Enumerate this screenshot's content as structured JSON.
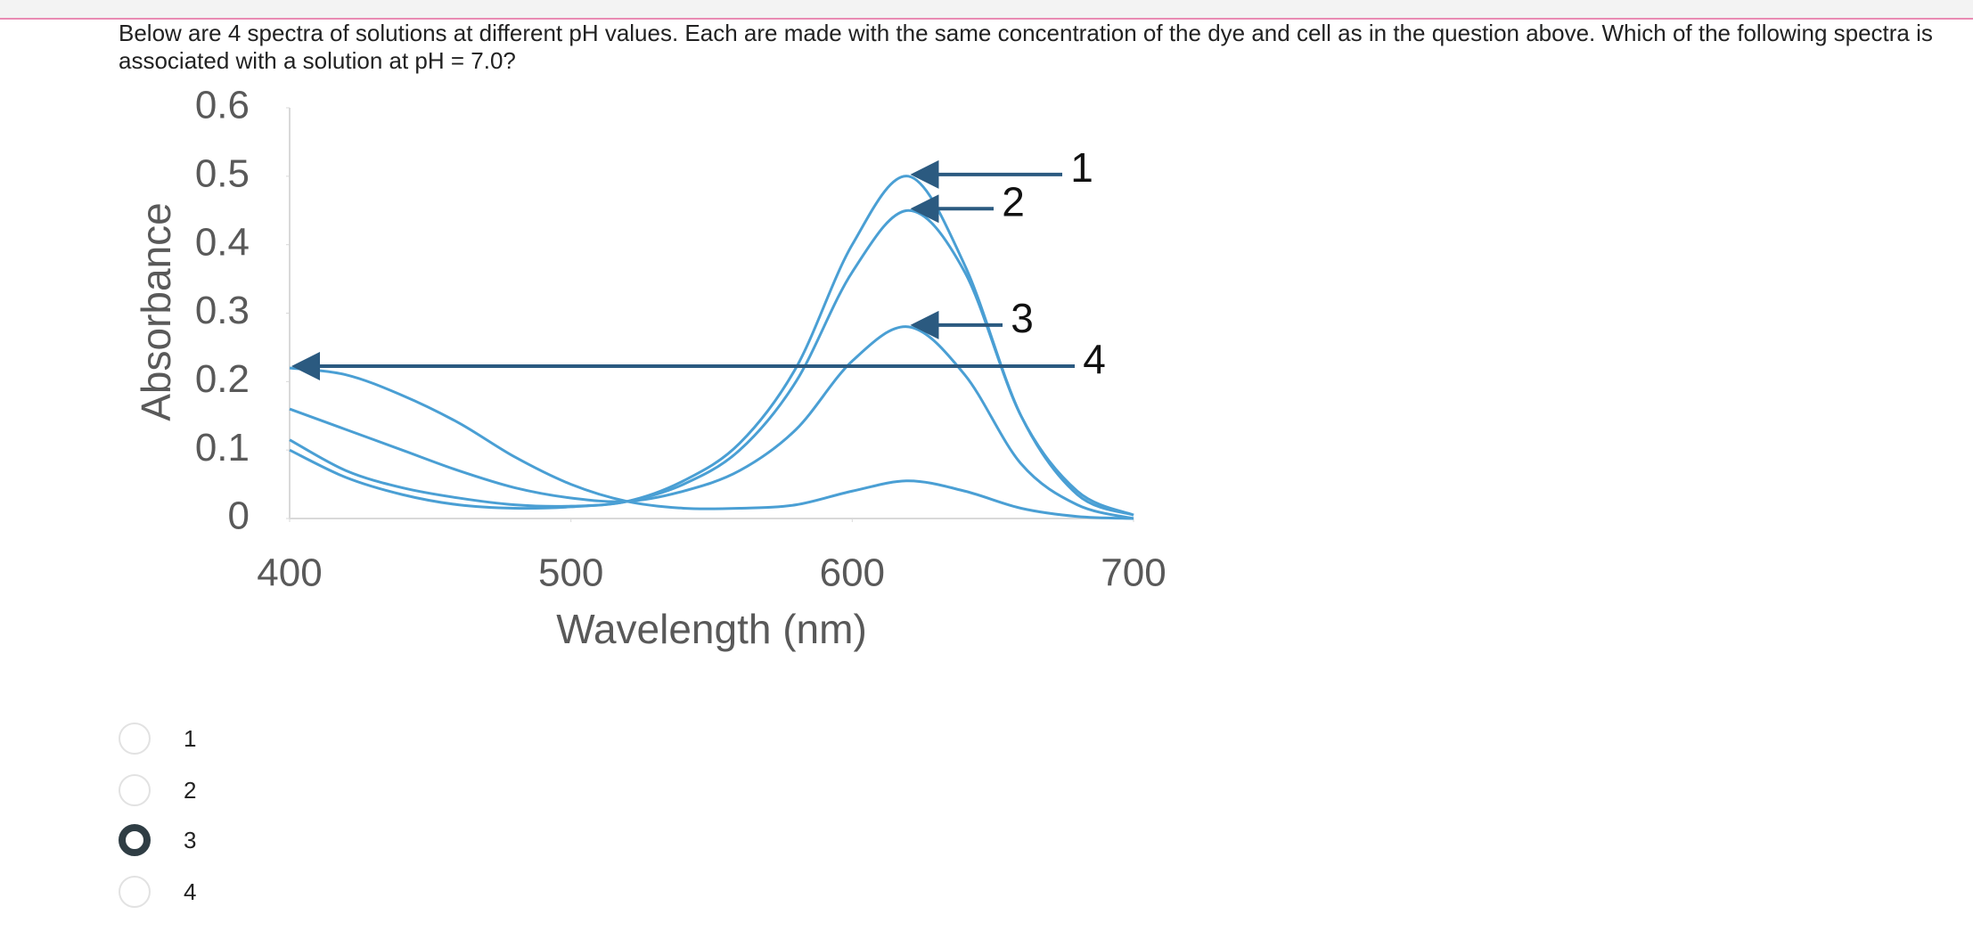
{
  "question": "Below are 4 spectra of solutions at different pH values. Each are made with the same concentration of the dye and cell as in the question above. Which of the following spectra is associated with a solution at pH = 7.0?",
  "chart_data": {
    "type": "line",
    "x_label": "Wavelength (nm)",
    "y_label": "Absorbance",
    "x": [
      400,
      420,
      440,
      460,
      480,
      500,
      520,
      540,
      560,
      580,
      600,
      620,
      640,
      660,
      680,
      700
    ],
    "series": [
      {
        "color": "#4a9fd4",
        "values": [
          0.115,
          0.07,
          0.045,
          0.03,
          0.02,
          0.018,
          0.025,
          0.055,
          0.11,
          0.22,
          0.4,
          0.5,
          0.37,
          0.15,
          0.035,
          0.005
        ]
      },
      {
        "color": "#4a9fd4",
        "values": [
          0.1,
          0.06,
          0.035,
          0.02,
          0.015,
          0.017,
          0.025,
          0.05,
          0.1,
          0.2,
          0.36,
          0.45,
          0.36,
          0.15,
          0.04,
          0.005
        ]
      },
      {
        "color": "#4a9fd4",
        "values": [
          0.16,
          0.13,
          0.1,
          0.07,
          0.045,
          0.03,
          0.025,
          0.04,
          0.07,
          0.13,
          0.23,
          0.28,
          0.21,
          0.08,
          0.02,
          0
        ]
      },
      {
        "color": "#4a9fd4",
        "values": [
          0.22,
          0.21,
          0.18,
          0.14,
          0.09,
          0.05,
          0.025,
          0.015,
          0.015,
          0.02,
          0.04,
          0.055,
          0.04,
          0.015,
          0.003,
          0
        ]
      }
    ],
    "annotations": [
      "1",
      "2",
      "3",
      "4"
    ],
    "arrow_color": "#2b5a80",
    "xlim": [
      400,
      700
    ],
    "xticks": [
      400,
      500,
      600,
      700
    ],
    "ylim": [
      0,
      0.6
    ],
    "yticks": [
      0,
      0.1,
      0.2,
      0.3,
      0.4,
      0.5,
      0.6
    ],
    "grid": false
  },
  "options": [
    "1",
    "2",
    "3",
    "4"
  ],
  "selected": 2
}
